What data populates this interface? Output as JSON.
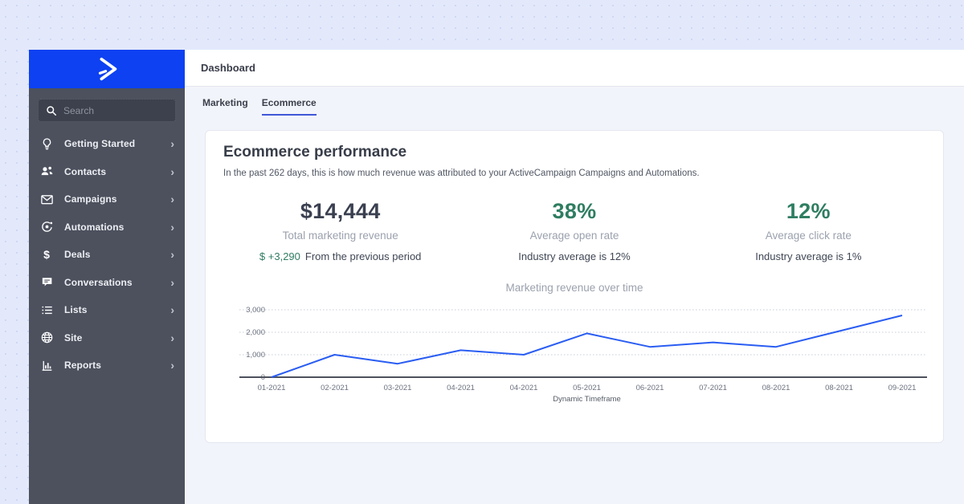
{
  "colors": {
    "brand_blue": "#0d41f2",
    "line_blue": "#2a5df2",
    "tab_underline": "#3f57d6",
    "green": "#2f7d61",
    "sidebar_bg": "#4d515e",
    "content_bg": "#f2f4fb",
    "outer_bg": "#e3e9fb",
    "dot_color": "#ccd6f4"
  },
  "sidebar": {
    "search": {
      "placeholder": "Search",
      "icon": "search-icon"
    },
    "items": [
      {
        "label": "Getting Started",
        "icon": "lightbulb-icon"
      },
      {
        "label": "Contacts",
        "icon": "contacts-icon"
      },
      {
        "label": "Campaigns",
        "icon": "envelope-icon"
      },
      {
        "label": "Automations",
        "icon": "automation-icon"
      },
      {
        "label": "Deals",
        "icon": "dollar-icon"
      },
      {
        "label": "Conversations",
        "icon": "chat-bubble-icon"
      },
      {
        "label": "Lists",
        "icon": "list-icon"
      },
      {
        "label": "Site",
        "icon": "globe-icon"
      },
      {
        "label": "Reports",
        "icon": "bar-chart-icon"
      }
    ]
  },
  "header": {
    "title": "Dashboard"
  },
  "tabs": [
    {
      "label": "Marketing",
      "active": false
    },
    {
      "label": "Ecommerce",
      "active": true
    }
  ],
  "card": {
    "title": "Ecommerce performance",
    "subtitle": "In the past 262 days, this is how much revenue was attributed to your ActiveCampaign Campaigns and Automations.",
    "metrics": [
      {
        "value": "$14,444",
        "label": "Total marketing revenue",
        "delta": "$ +3,290",
        "delta_note": "From the previous period"
      },
      {
        "value": "38%",
        "label": "Average open rate",
        "note": "Industry average is 12%"
      },
      {
        "value": "12%",
        "label": "Average click rate",
        "note": "Industry average is 1%"
      }
    ]
  },
  "chart_data": {
    "type": "line",
    "title": "Marketing revenue over time",
    "categories": [
      "01-2021",
      "02-2021",
      "03-2021",
      "04-2021",
      "04-2021",
      "05-2021",
      "06-2021",
      "07-2021",
      "08-2021",
      "08-2021",
      "09-2021"
    ],
    "values": [
      0,
      1000,
      600,
      1200,
      1000,
      1950,
      1350,
      1550,
      1350,
      2050,
      2750
    ],
    "xlabel": "Dynamic Timeframe",
    "ylabel": "",
    "yticks": [
      0,
      1000,
      2000,
      3000
    ],
    "ytick_labels": [
      "0",
      "1,000",
      "2,000",
      "3,000"
    ],
    "ylim": [
      0,
      3300
    ],
    "grid": "horizontal-dotted",
    "legend": "none",
    "line_color": "#2a5df2"
  }
}
